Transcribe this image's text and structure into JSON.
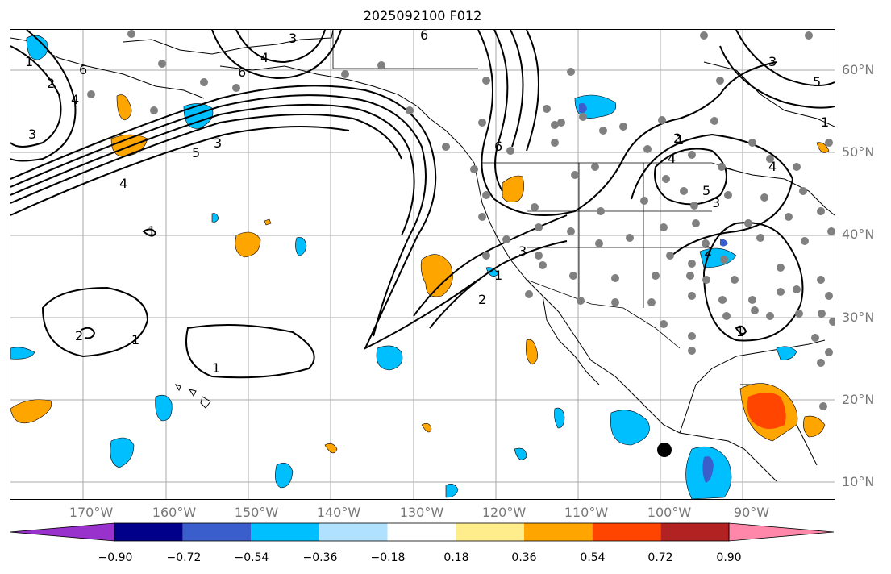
{
  "title": "2025092100 F012",
  "lat_labels": [
    "60°N",
    "50°N",
    "40°N",
    "30°N",
    "20°N",
    "10°N"
  ],
  "lon_labels": [
    "170°W",
    "160°W",
    "150°W",
    "140°W",
    "130°W",
    "120°W",
    "110°W",
    "100°W",
    "90°W"
  ],
  "contour_labels": [
    "1",
    "2",
    "3",
    "4",
    "5",
    "6"
  ],
  "colorbar": {
    "ticks": [
      "−0.90",
      "−0.72",
      "−0.54",
      "−0.36",
      "−0.18",
      "0.18",
      "0.36",
      "0.54",
      "0.72",
      "0.90"
    ],
    "colors": [
      "#9932cc",
      "#00008b",
      "#3a5fcd",
      "#00bfff",
      "#b0e2ff",
      "#ffffff",
      "#ffec8b",
      "#ffa500",
      "#ff4500",
      "#b22222",
      "#ff88aa"
    ]
  },
  "marker_colors": {
    "station": "#808080",
    "target": "#000000"
  }
}
